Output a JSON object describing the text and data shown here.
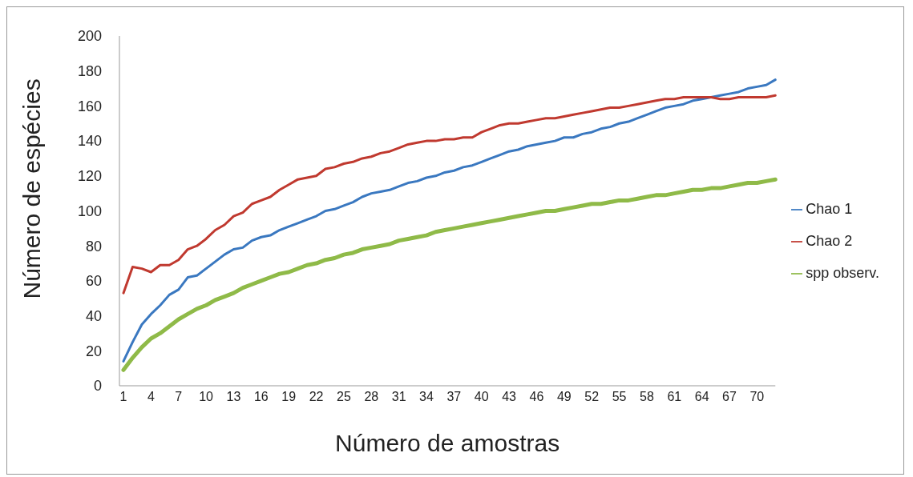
{
  "chart_data": {
    "type": "line",
    "xlabel": "Número de amostras",
    "ylabel": "Número de espécies",
    "categories": [
      "1",
      null,
      null,
      "4",
      null,
      null,
      "7",
      null,
      null,
      "10",
      null,
      null,
      "13",
      null,
      null,
      "16",
      null,
      null,
      "19",
      null,
      null,
      "22",
      null,
      null,
      "25",
      null,
      null,
      "28",
      null,
      null,
      "31",
      null,
      null,
      "34",
      null,
      null,
      "37",
      null,
      null,
      "40",
      null,
      null,
      "43",
      null,
      null,
      "46",
      null,
      null,
      "49",
      null,
      null,
      "52",
      null,
      null,
      "55",
      null,
      null,
      "58",
      null,
      null,
      "61",
      null,
      null,
      "64",
      null,
      null,
      "67",
      null,
      null,
      "70",
      null,
      null
    ],
    "ylim": [
      0,
      200
    ],
    "yticks": [
      0,
      20,
      40,
      60,
      80,
      100,
      120,
      140,
      160,
      180,
      200
    ],
    "grid": false,
    "legend": "right",
    "marker": "none",
    "line_style": "solid",
    "series": [
      {
        "name": "Chao 1",
        "color": "#3a78c0",
        "values": [
          14,
          25,
          35,
          41,
          46,
          52,
          55,
          62,
          63,
          67,
          71,
          75,
          78,
          79,
          83,
          85,
          86,
          89,
          91,
          93,
          95,
          97,
          100,
          101,
          103,
          105,
          108,
          110,
          111,
          112,
          114,
          116,
          117,
          119,
          120,
          122,
          123,
          125,
          126,
          128,
          130,
          132,
          134,
          135,
          137,
          138,
          139,
          140,
          142,
          142,
          144,
          145,
          147,
          148,
          150,
          151,
          153,
          155,
          157,
          159,
          160,
          161,
          163,
          164,
          165,
          166,
          167,
          168,
          170,
          171,
          172,
          175
        ]
      },
      {
        "name": "Chao 2",
        "color": "#c0392f",
        "values": [
          53,
          68,
          67,
          65,
          69,
          69,
          72,
          78,
          80,
          84,
          89,
          92,
          97,
          99,
          104,
          106,
          108,
          112,
          115,
          118,
          119,
          120,
          124,
          125,
          127,
          128,
          130,
          131,
          133,
          134,
          136,
          138,
          139,
          140,
          140,
          141,
          141,
          142,
          142,
          145,
          147,
          149,
          150,
          150,
          151,
          152,
          153,
          153,
          154,
          155,
          156,
          157,
          158,
          159,
          159,
          160,
          161,
          162,
          163,
          164,
          164,
          165,
          165,
          165,
          165,
          164,
          164,
          165,
          165,
          165,
          165,
          166
        ]
      },
      {
        "name": "spp observ.",
        "color": "#8fba48",
        "values": [
          9,
          16,
          22,
          27,
          30,
          34,
          38,
          41,
          44,
          46,
          49,
          51,
          53,
          56,
          58,
          60,
          62,
          64,
          65,
          67,
          69,
          70,
          72,
          73,
          75,
          76,
          78,
          79,
          80,
          81,
          83,
          84,
          85,
          86,
          88,
          89,
          90,
          91,
          92,
          93,
          94,
          95,
          96,
          97,
          98,
          99,
          100,
          100,
          101,
          102,
          103,
          104,
          104,
          105,
          106,
          106,
          107,
          108,
          109,
          109,
          110,
          111,
          112,
          112,
          113,
          113,
          114,
          115,
          116,
          116,
          117,
          118
        ]
      }
    ]
  }
}
